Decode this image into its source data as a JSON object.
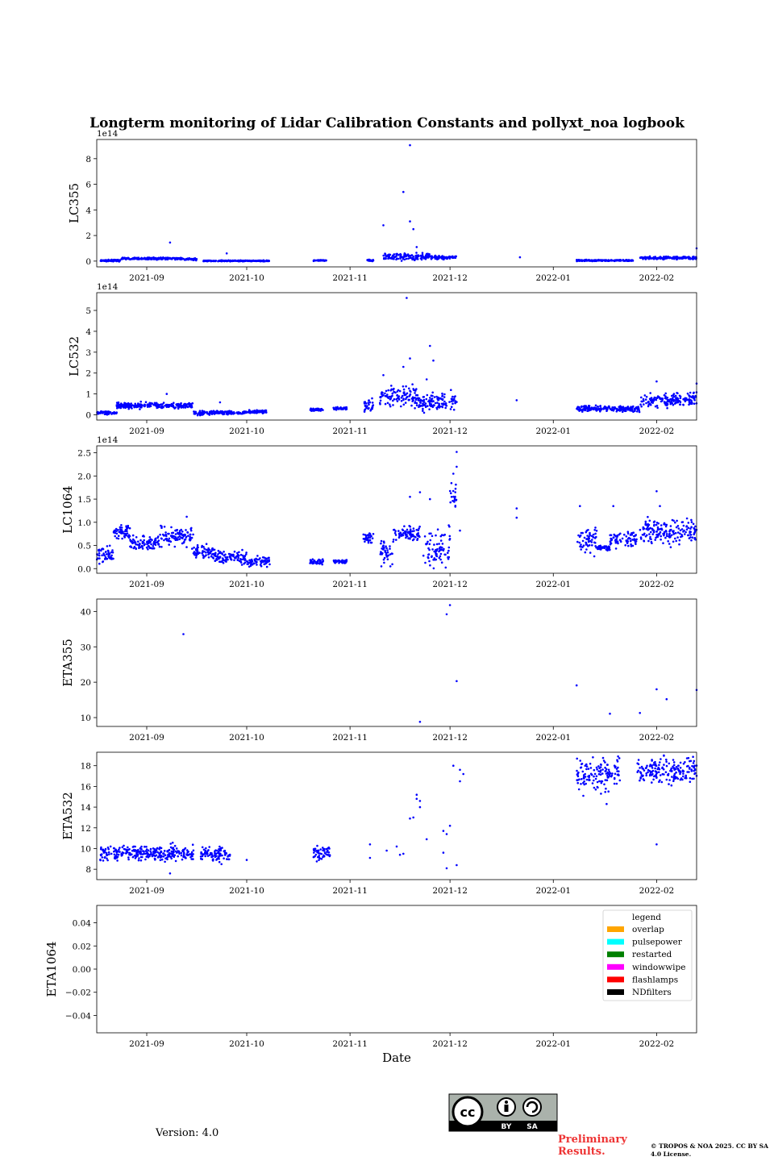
{
  "figure": {
    "title": "Longterm monitoring of Lidar Calibration Constants and pollyxt_noa logbook",
    "xlabel": "Date",
    "version": "Version: 4.0",
    "preliminary": "Preliminary Results.",
    "copyright": "© TROPOS & NOA 2025. CC BY SA 4.0 License.",
    "license_badge": [
      "BY",
      "SA"
    ]
  },
  "colors": {
    "data": "#0000ff",
    "axis": "#000000",
    "prelim": "#ee3333"
  },
  "chart_data": [
    {
      "type": "scatter",
      "name": "LC355",
      "ylabel": "LC355",
      "offset_text": "1e14",
      "xlim": [
        "2021-08-17",
        "2022-02-13"
      ],
      "xticks": [
        "2021-09-01",
        "2021-10-01",
        "2021-11-01",
        "2021-12-01",
        "2022-01-01",
        "2022-02-01"
      ],
      "xticklabels": [
        "2021-09",
        "2021-10",
        "2021-11",
        "2021-12",
        "2022-01",
        "2022-02"
      ],
      "ylim": [
        -0.45,
        9.5
      ],
      "yticks": [
        0,
        2,
        4,
        6,
        8
      ],
      "segments": [
        {
          "start": "2021-08-18",
          "end": "2021-08-24",
          "base": 0.05,
          "noise": 0.05
        },
        {
          "start": "2021-08-24",
          "end": "2021-09-12",
          "base": 0.2,
          "noise": 0.06
        },
        {
          "start": "2021-09-12",
          "end": "2021-09-16",
          "base": 0.15,
          "noise": 0.05
        },
        {
          "start": "2021-09-18",
          "end": "2021-10-08",
          "base": 0.02,
          "noise": 0.03
        },
        {
          "start": "2021-10-21",
          "end": "2021-10-25",
          "base": 0.05,
          "noise": 0.03
        },
        {
          "start": "2021-11-06",
          "end": "2021-11-08",
          "base": 0.05,
          "noise": 0.05
        },
        {
          "start": "2021-11-11",
          "end": "2021-11-25",
          "base": 0.35,
          "noise": 0.2
        },
        {
          "start": "2021-11-25",
          "end": "2021-12-03",
          "base": 0.3,
          "noise": 0.12
        },
        {
          "start": "2022-01-08",
          "end": "2022-01-25",
          "base": 0.05,
          "noise": 0.04
        },
        {
          "start": "2022-01-27",
          "end": "2022-02-13",
          "base": 0.25,
          "noise": 0.08
        }
      ],
      "points": [
        {
          "x": "2021-09-08",
          "y": 1.45
        },
        {
          "x": "2021-11-11",
          "y": 2.8
        },
        {
          "x": "2021-11-17",
          "y": 5.4
        },
        {
          "x": "2021-11-19",
          "y": 9.05
        },
        {
          "x": "2021-11-19",
          "y": 3.1
        },
        {
          "x": "2021-11-20",
          "y": 2.5
        },
        {
          "x": "2021-11-21",
          "y": 1.1
        },
        {
          "x": "2021-09-25",
          "y": 0.6
        },
        {
          "x": "2021-12-22",
          "y": 0.3
        },
        {
          "x": "2022-02-13",
          "y": 1.0
        }
      ]
    },
    {
      "type": "scatter",
      "name": "LC532",
      "ylabel": "LC532",
      "offset_text": "1e14",
      "xlim": [
        "2021-08-17",
        "2022-02-13"
      ],
      "xticks": [
        "2021-09-01",
        "2021-10-01",
        "2021-11-01",
        "2021-12-01",
        "2022-01-01",
        "2022-02-01"
      ],
      "xticklabels": [
        "2021-09",
        "2021-10",
        "2021-11",
        "2021-12",
        "2022-01",
        "2022-02"
      ],
      "ylim": [
        -0.25,
        5.85
      ],
      "yticks": [
        0,
        1,
        2,
        3,
        4,
        5
      ],
      "segments": [
        {
          "start": "2021-08-17",
          "end": "2021-08-23",
          "base": 0.1,
          "noise": 0.06
        },
        {
          "start": "2021-08-23",
          "end": "2021-09-15",
          "base": 0.45,
          "noise": 0.1
        },
        {
          "start": "2021-09-15",
          "end": "2021-09-19",
          "base": 0.1,
          "noise": 0.08
        },
        {
          "start": "2021-09-19",
          "end": "2021-10-01",
          "base": 0.1,
          "noise": 0.06
        },
        {
          "start": "2021-10-01",
          "end": "2021-10-07",
          "base": 0.15,
          "noise": 0.06
        },
        {
          "start": "2021-10-20",
          "end": "2021-10-24",
          "base": 0.25,
          "noise": 0.05
        },
        {
          "start": "2021-10-27",
          "end": "2021-10-31",
          "base": 0.3,
          "noise": 0.05
        },
        {
          "start": "2021-11-05",
          "end": "2021-11-08",
          "base": 0.4,
          "noise": 0.25
        },
        {
          "start": "2021-11-10",
          "end": "2021-11-21",
          "base": 0.9,
          "noise": 0.35
        },
        {
          "start": "2021-11-21",
          "end": "2021-12-03",
          "base": 0.65,
          "noise": 0.3
        },
        {
          "start": "2022-01-08",
          "end": "2022-01-27",
          "base": 0.3,
          "noise": 0.1
        },
        {
          "start": "2022-01-27",
          "end": "2022-02-13",
          "base": 0.7,
          "noise": 0.25
        }
      ],
      "points": [
        {
          "x": "2021-09-07",
          "y": 1.0
        },
        {
          "x": "2021-09-23",
          "y": 0.6
        },
        {
          "x": "2021-11-18",
          "y": 5.6
        },
        {
          "x": "2021-11-19",
          "y": 2.7
        },
        {
          "x": "2021-11-17",
          "y": 2.3
        },
        {
          "x": "2021-11-11",
          "y": 1.9
        },
        {
          "x": "2021-11-25",
          "y": 3.3
        },
        {
          "x": "2021-11-26",
          "y": 2.6
        },
        {
          "x": "2021-11-24",
          "y": 1.7
        },
        {
          "x": "2021-12-21",
          "y": 0.7
        },
        {
          "x": "2022-02-01",
          "y": 1.6
        },
        {
          "x": "2022-02-13",
          "y": 1.5
        }
      ]
    },
    {
      "type": "scatter",
      "name": "LC1064",
      "ylabel": "LC1064",
      "offset_text": "1e14",
      "xlim": [
        "2021-08-17",
        "2022-02-13"
      ],
      "xticks": [
        "2021-09-01",
        "2021-10-01",
        "2021-11-01",
        "2021-12-01",
        "2022-01-01",
        "2022-02-01"
      ],
      "xticklabels": [
        "2021-09",
        "2021-10",
        "2021-11",
        "2021-12",
        "2022-01",
        "2022-02"
      ],
      "ylim": [
        -0.1,
        2.65
      ],
      "yticks": [
        0.0,
        0.5,
        1.0,
        1.5,
        2.0,
        2.5
      ],
      "segments": [
        {
          "start": "2021-08-17",
          "end": "2021-08-22",
          "base": 0.3,
          "noise": 0.12
        },
        {
          "start": "2021-08-22",
          "end": "2021-08-27",
          "base": 0.8,
          "noise": 0.12
        },
        {
          "start": "2021-08-27",
          "end": "2021-09-05",
          "base": 0.55,
          "noise": 0.12
        },
        {
          "start": "2021-09-05",
          "end": "2021-09-15",
          "base": 0.7,
          "noise": 0.15
        },
        {
          "start": "2021-09-15",
          "end": "2021-09-21",
          "base": 0.35,
          "noise": 0.12
        },
        {
          "start": "2021-09-21",
          "end": "2021-10-01",
          "base": 0.25,
          "noise": 0.12
        },
        {
          "start": "2021-10-01",
          "end": "2021-10-08",
          "base": 0.15,
          "noise": 0.08
        },
        {
          "start": "2021-10-20",
          "end": "2021-10-24",
          "base": 0.15,
          "noise": 0.04
        },
        {
          "start": "2021-10-27",
          "end": "2021-10-31",
          "base": 0.15,
          "noise": 0.03
        },
        {
          "start": "2021-11-05",
          "end": "2021-11-08",
          "base": 0.65,
          "noise": 0.08
        },
        {
          "start": "2021-11-10",
          "end": "2021-11-14",
          "base": 0.35,
          "noise": 0.2
        },
        {
          "start": "2021-11-14",
          "end": "2021-11-22",
          "base": 0.75,
          "noise": 0.12
        },
        {
          "start": "2021-11-23",
          "end": "2021-12-01",
          "base": 0.45,
          "noise": 0.3
        },
        {
          "start": "2021-12-01",
          "end": "2021-12-03",
          "base": 1.5,
          "noise": 0.2
        },
        {
          "start": "2022-01-08",
          "end": "2022-01-14",
          "base": 0.6,
          "noise": 0.2
        },
        {
          "start": "2022-01-14",
          "end": "2022-01-18",
          "base": 0.45,
          "noise": 0.05
        },
        {
          "start": "2022-01-18",
          "end": "2022-01-26",
          "base": 0.65,
          "noise": 0.12
        },
        {
          "start": "2022-01-27",
          "end": "2022-02-13",
          "base": 0.8,
          "noise": 0.2
        }
      ],
      "points": [
        {
          "x": "2021-09-13",
          "y": 1.12
        },
        {
          "x": "2021-12-03",
          "y": 2.52
        },
        {
          "x": "2021-12-03",
          "y": 2.2
        },
        {
          "x": "2021-12-02",
          "y": 2.05
        },
        {
          "x": "2021-12-04",
          "y": 0.82
        },
        {
          "x": "2021-11-19",
          "y": 1.55
        },
        {
          "x": "2021-11-22",
          "y": 1.65
        },
        {
          "x": "2021-11-25",
          "y": 1.5
        },
        {
          "x": "2021-12-21",
          "y": 1.3
        },
        {
          "x": "2021-12-21",
          "y": 1.1
        },
        {
          "x": "2022-01-09",
          "y": 1.35
        },
        {
          "x": "2022-01-19",
          "y": 1.35
        },
        {
          "x": "2022-02-01",
          "y": 1.67
        },
        {
          "x": "2022-02-02",
          "y": 1.35
        }
      ]
    },
    {
      "type": "scatter",
      "name": "ETA355",
      "ylabel": "ETA355",
      "offset_text": "",
      "xlim": [
        "2021-08-17",
        "2022-02-13"
      ],
      "xticks": [
        "2021-09-01",
        "2021-10-01",
        "2021-11-01",
        "2021-12-01",
        "2022-01-01",
        "2022-02-01"
      ],
      "xticklabels": [
        "2021-09",
        "2021-10",
        "2021-11",
        "2021-12",
        "2022-01",
        "2022-02"
      ],
      "ylim": [
        7.5,
        43.5
      ],
      "yticks": [
        10,
        20,
        30,
        40
      ],
      "segments": [],
      "points": [
        {
          "x": "2021-09-12",
          "y": 33.6
        },
        {
          "x": "2021-11-22",
          "y": 8.8
        },
        {
          "x": "2021-11-30",
          "y": 39.2
        },
        {
          "x": "2021-12-01",
          "y": 41.8
        },
        {
          "x": "2021-12-03",
          "y": 20.3
        },
        {
          "x": "2022-01-08",
          "y": 19.1
        },
        {
          "x": "2022-01-18",
          "y": 11.1
        },
        {
          "x": "2022-01-27",
          "y": 11.3
        },
        {
          "x": "2022-02-01",
          "y": 18.0
        },
        {
          "x": "2022-02-04",
          "y": 15.2
        },
        {
          "x": "2022-02-13",
          "y": 17.8
        }
      ]
    },
    {
      "type": "scatter",
      "name": "ETA532",
      "ylabel": "ETA532",
      "offset_text": "",
      "xlim": [
        "2021-08-17",
        "2022-02-13"
      ],
      "xticks": [
        "2021-09-01",
        "2021-10-01",
        "2021-11-01",
        "2021-12-01",
        "2022-01-01",
        "2022-02-01"
      ],
      "xticklabels": [
        "2021-09",
        "2021-10",
        "2021-11",
        "2021-12",
        "2022-01",
        "2022-02"
      ],
      "ylim": [
        7.0,
        19.3
      ],
      "yticks": [
        8,
        10,
        12,
        14,
        16,
        18
      ],
      "segments": [
        {
          "start": "2021-08-18",
          "end": "2021-09-15",
          "base": 9.6,
          "noise": 0.55
        },
        {
          "start": "2021-09-17",
          "end": "2021-09-26",
          "base": 9.5,
          "noise": 0.55
        },
        {
          "start": "2021-10-21",
          "end": "2021-10-26",
          "base": 9.6,
          "noise": 0.5
        },
        {
          "start": "2022-01-08",
          "end": "2022-01-21",
          "base": 17.2,
          "noise": 1.2
        },
        {
          "start": "2022-01-26",
          "end": "2022-02-13",
          "base": 17.5,
          "noise": 0.9
        }
      ],
      "points": [
        {
          "x": "2021-10-01",
          "y": 8.9
        },
        {
          "x": "2021-11-07",
          "y": 10.4
        },
        {
          "x": "2021-11-07",
          "y": 9.1
        },
        {
          "x": "2021-11-12",
          "y": 9.8
        },
        {
          "x": "2021-11-15",
          "y": 10.2
        },
        {
          "x": "2021-11-16",
          "y": 9.4
        },
        {
          "x": "2021-11-17",
          "y": 9.5
        },
        {
          "x": "2021-11-19",
          "y": 12.9
        },
        {
          "x": "2021-11-20",
          "y": 13.0
        },
        {
          "x": "2021-11-21",
          "y": 15.2
        },
        {
          "x": "2021-11-21",
          "y": 14.8
        },
        {
          "x": "2021-11-22",
          "y": 14.6
        },
        {
          "x": "2021-11-22",
          "y": 14.0
        },
        {
          "x": "2021-11-24",
          "y": 10.9
        },
        {
          "x": "2021-11-29",
          "y": 11.7
        },
        {
          "x": "2021-11-29",
          "y": 9.6
        },
        {
          "x": "2021-11-30",
          "y": 11.4
        },
        {
          "x": "2021-12-01",
          "y": 12.2
        },
        {
          "x": "2021-11-30",
          "y": 8.1
        },
        {
          "x": "2021-12-02",
          "y": 18.0
        },
        {
          "x": "2021-12-03",
          "y": 8.4
        },
        {
          "x": "2021-12-04",
          "y": 17.6
        },
        {
          "x": "2021-12-04",
          "y": 16.5
        },
        {
          "x": "2021-12-05",
          "y": 17.2
        },
        {
          "x": "2021-09-08",
          "y": 7.6
        },
        {
          "x": "2022-02-01",
          "y": 10.4
        },
        {
          "x": "2022-01-17",
          "y": 14.3
        },
        {
          "x": "2022-01-10",
          "y": 15.1
        }
      ]
    },
    {
      "type": "scatter",
      "name": "ETA1064",
      "ylabel": "ETA1064",
      "offset_text": "",
      "xlim": [
        "2021-08-17",
        "2022-02-13"
      ],
      "xticks": [
        "2021-09-01",
        "2021-10-01",
        "2021-11-01",
        "2021-12-01",
        "2022-01-01",
        "2022-02-01"
      ],
      "xticklabels": [
        "2021-09",
        "2021-10",
        "2021-11",
        "2021-12",
        "2022-01",
        "2022-02"
      ],
      "ylim": [
        -0.055,
        0.055
      ],
      "yticks": [
        -0.04,
        -0.02,
        0.0,
        0.02,
        0.04
      ],
      "yticklabels": [
        "−0.04",
        "−0.02",
        "0.00",
        "0.02",
        "0.04"
      ],
      "segments": [],
      "points": [],
      "legend": {
        "title": "legend",
        "position": "top-right",
        "entries": [
          {
            "label": "overlap",
            "color": "#ffa500"
          },
          {
            "label": "pulsepower",
            "color": "#00ffff"
          },
          {
            "label": "restarted",
            "color": "#008000"
          },
          {
            "label": "windowwipe",
            "color": "#ff00ff"
          },
          {
            "label": "flashlamps",
            "color": "#ff0000"
          },
          {
            "label": "NDfilters",
            "color": "#000000"
          }
        ]
      }
    }
  ]
}
